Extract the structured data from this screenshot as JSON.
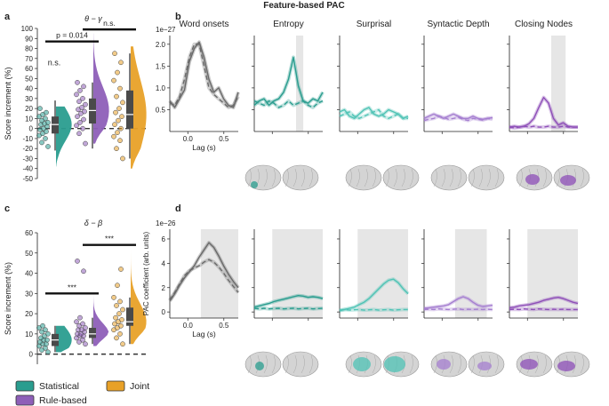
{
  "figure": {
    "title": "Feature-based PAC",
    "panel_labels": [
      "a",
      "b",
      "c",
      "d"
    ],
    "legend": [
      {
        "label": "Statistical",
        "color": "#2a9d8f"
      },
      {
        "label": "Rule-based",
        "color": "#8e5fb8"
      },
      {
        "label": "Joint",
        "color": "#e8a128"
      }
    ]
  },
  "chart_data": [
    {
      "id": "a",
      "type": "violin",
      "title": "θ − γ",
      "ylabel": "Score increment (%)",
      "ylim": [
        -50,
        100
      ],
      "yticks": [
        -50,
        -40,
        -30,
        -20,
        -10,
        0,
        10,
        20,
        30,
        40,
        50,
        60,
        70,
        80,
        90,
        100
      ],
      "groups": [
        {
          "name": "Statistical",
          "median": 4,
          "q1": -5,
          "q3": 12,
          "whisker_low": -22,
          "whisker_high": 28,
          "max": 22,
          "min": -38,
          "points": [
            -18,
            -14,
            -10,
            -7,
            -5,
            -3,
            -1,
            0,
            2,
            4,
            5,
            6,
            8,
            10,
            12,
            14,
            16,
            20
          ]
        },
        {
          "name": "Rule-based",
          "median": 18,
          "q1": 5,
          "q3": 30,
          "whisker_low": -20,
          "whisker_high": 46,
          "max": 95,
          "min": -15,
          "points": [
            -15,
            -5,
            0,
            3,
            6,
            9,
            12,
            15,
            17,
            19,
            21,
            24,
            27,
            30,
            34,
            38,
            42,
            46
          ]
        },
        {
          "name": "Joint",
          "median": 14,
          "q1": 0,
          "q3": 38,
          "whisker_low": -30,
          "whisker_high": 75,
          "max": 82,
          "min": -40,
          "points": [
            -30,
            -20,
            -12,
            -8,
            -4,
            0,
            4,
            8,
            12,
            16,
            20,
            26,
            32,
            40,
            48,
            56,
            66,
            75
          ]
        }
      ],
      "annotations": [
        {
          "pair": [
            0,
            1
          ],
          "text": "p = 0.014",
          "y": 87
        },
        {
          "pair": [
            1,
            2
          ],
          "text": "n.s.",
          "y": 99
        },
        {
          "group": 0,
          "text": "n.s.",
          "y": 63
        }
      ]
    },
    {
      "id": "c",
      "type": "violin",
      "title": "δ − β",
      "ylabel": "Score increment (%)",
      "ylim": [
        -5,
        60
      ],
      "yticks": [
        0,
        10,
        20,
        30,
        40,
        50,
        60
      ],
      "groups": [
        {
          "name": "Statistical",
          "median": 7,
          "q1": 4,
          "q3": 10,
          "whisker_low": 1,
          "whisker_high": 14,
          "max": 14,
          "min": 1,
          "points": [
            1,
            2,
            3,
            4,
            5,
            5,
            6,
            7,
            7,
            8,
            9,
            10,
            11,
            12,
            13,
            14
          ]
        },
        {
          "name": "Rule-based",
          "median": 10,
          "q1": 8,
          "q3": 13,
          "whisker_low": 5,
          "whisker_high": 18,
          "max": 47,
          "min": 4,
          "points": [
            5,
            6,
            7,
            8,
            9,
            9,
            10,
            10,
            11,
            12,
            12,
            13,
            14,
            15,
            16,
            18,
            41,
            46
          ]
        },
        {
          "name": "Joint",
          "median": 16,
          "q1": 14,
          "q3": 23,
          "whisker_low": 5,
          "whisker_high": 28,
          "max": 52,
          "min": 5,
          "points": [
            5,
            8,
            10,
            12,
            13,
            14,
            15,
            16,
            17,
            18,
            20,
            22,
            24,
            26,
            28,
            34,
            42
          ]
        }
      ],
      "annotations": [
        {
          "pair": [
            0,
            1
          ],
          "text": "***",
          "y": 30
        },
        {
          "pair": [
            1,
            2
          ],
          "text": "***",
          "y": 54
        }
      ]
    },
    {
      "id": "b",
      "type": "line",
      "row_label": "b",
      "scale_label": "1e−27",
      "ylim": [
        0,
        2.2
      ],
      "yticks": [
        0.5,
        1.0,
        1.5,
        2.0
      ],
      "xlim": [
        -0.25,
        0.7
      ],
      "xticks": [
        0,
        0.5
      ],
      "xlabel": "Lag (s)",
      "panels": [
        {
          "title": "Word onsets",
          "color": "#6a6a6a",
          "shade": null,
          "solid": [
            0.7,
            0.55,
            0.75,
            0.95,
            1.6,
            1.9,
            2.05,
            1.7,
            1.2,
            0.9,
            1.0,
            0.75,
            0.6,
            0.55,
            0.9
          ],
          "dashed": [
            0.65,
            0.6,
            0.8,
            1.2,
            1.7,
            2.0,
            2.0,
            1.5,
            1.0,
            0.85,
            0.75,
            0.65,
            0.55,
            0.6,
            0.8
          ]
        },
        {
          "title": "Entropy",
          "color": "#2a9d8f",
          "shade": [
            0.33,
            0.43
          ],
          "solid": [
            0.6,
            0.7,
            0.75,
            0.6,
            0.7,
            0.75,
            0.9,
            1.2,
            1.7,
            1.05,
            0.7,
            0.65,
            0.75,
            0.7,
            0.9
          ],
          "dashed": [
            0.7,
            0.65,
            0.6,
            0.7,
            0.65,
            0.55,
            0.6,
            0.7,
            0.6,
            0.65,
            0.7,
            0.6,
            0.55,
            0.65,
            0.7
          ]
        },
        {
          "title": "Surprisal",
          "color": "#4fc3b5",
          "shade": null,
          "solid": [
            0.45,
            0.5,
            0.35,
            0.3,
            0.4,
            0.5,
            0.55,
            0.4,
            0.35,
            0.4,
            0.5,
            0.45,
            0.4,
            0.3,
            0.35
          ],
          "dashed": [
            0.35,
            0.4,
            0.45,
            0.35,
            0.3,
            0.35,
            0.4,
            0.45,
            0.5,
            0.35,
            0.3,
            0.35,
            0.4,
            0.3,
            0.3
          ]
        },
        {
          "title": "Syntactic Depth",
          "color": "#a57fd0",
          "shade": null,
          "solid": [
            0.3,
            0.35,
            0.4,
            0.35,
            0.3,
            0.35,
            0.4,
            0.35,
            0.3,
            0.3,
            0.35,
            0.3,
            0.28,
            0.3,
            0.32
          ],
          "dashed": [
            0.25,
            0.28,
            0.3,
            0.35,
            0.32,
            0.28,
            0.3,
            0.32,
            0.28,
            0.25,
            0.3,
            0.28,
            0.26,
            0.3,
            0.28
          ]
        },
        {
          "title": "Closing Nodes",
          "color": "#8e4fb8",
          "shade": [
            0.33,
            0.53
          ],
          "solid": [
            0.1,
            0.12,
            0.1,
            0.12,
            0.18,
            0.3,
            0.55,
            0.78,
            0.65,
            0.3,
            0.15,
            0.2,
            0.12,
            0.1,
            0.1
          ],
          "dashed": [
            0.1,
            0.08,
            0.1,
            0.12,
            0.1,
            0.12,
            0.1,
            0.1,
            0.12,
            0.1,
            0.1,
            0.12,
            0.1,
            0.1,
            0.1
          ]
        }
      ]
    },
    {
      "id": "d",
      "type": "line",
      "row_label": "d",
      "scale_label": "1e−26",
      "ylabel": "PAC coefficient (arb. units)",
      "ylim": [
        -0.5,
        6.8
      ],
      "yticks": [
        0,
        2,
        4,
        6
      ],
      "xlim": [
        -0.25,
        0.7
      ],
      "xticks": [
        0,
        0.5
      ],
      "xlabel": "Lag (s)",
      "panels": [
        {
          "title": "Word onsets",
          "color": "#6a6a6a",
          "shade": [
            0.18,
            0.7
          ],
          "solid": [
            0.9,
            1.5,
            2.2,
            2.8,
            3.3,
            3.8,
            4.5,
            5.1,
            5.7,
            5.3,
            4.6,
            3.8,
            3.1,
            2.5,
            2.0
          ],
          "dashed": [
            1.0,
            1.6,
            2.3,
            3.0,
            3.4,
            3.6,
            3.8,
            4.1,
            4.3,
            4.1,
            3.7,
            3.2,
            2.6,
            2.1,
            1.6
          ]
        },
        {
          "title": "Entropy",
          "color": "#2a9d8f",
          "shade": [
            0.0,
            0.7
          ],
          "solid": [
            0.4,
            0.5,
            0.6,
            0.7,
            0.85,
            0.95,
            1.05,
            1.15,
            1.25,
            1.35,
            1.3,
            1.2,
            1.25,
            1.2,
            1.1
          ],
          "dashed": [
            0.3,
            0.25,
            0.3,
            0.25,
            0.28,
            0.3,
            0.25,
            0.28,
            0.3,
            0.25,
            0.28,
            0.3,
            0.25,
            0.28,
            0.3
          ]
        },
        {
          "title": "Surprisal",
          "color": "#4fc3b5",
          "shade": [
            0.0,
            0.7
          ],
          "solid": [
            0.1,
            0.2,
            0.3,
            0.4,
            0.6,
            0.8,
            1.1,
            1.5,
            1.9,
            2.3,
            2.6,
            2.7,
            2.4,
            1.9,
            1.5
          ],
          "dashed": [
            0.15,
            0.2,
            0.15,
            0.18,
            0.2,
            0.15,
            0.18,
            0.2,
            0.15,
            0.18,
            0.2,
            0.15,
            0.18,
            0.2,
            0.2
          ]
        },
        {
          "title": "Syntactic Depth",
          "color": "#a57fd0",
          "shade": [
            0.18,
            0.62
          ],
          "solid": [
            0.3,
            0.35,
            0.4,
            0.45,
            0.5,
            0.6,
            0.85,
            1.1,
            1.25,
            1.1,
            0.8,
            0.55,
            0.45,
            0.5,
            0.55
          ],
          "dashed": [
            0.2,
            0.22,
            0.2,
            0.25,
            0.22,
            0.2,
            0.22,
            0.25,
            0.2,
            0.22,
            0.2,
            0.22,
            0.2,
            0.22,
            0.2
          ]
        },
        {
          "title": "Closing Nodes",
          "color": "#8e4fb8",
          "shade": [
            0.0,
            0.7
          ],
          "solid": [
            0.35,
            0.4,
            0.5,
            0.55,
            0.6,
            0.7,
            0.8,
            0.95,
            1.05,
            1.15,
            1.2,
            1.1,
            0.95,
            0.8,
            0.7
          ],
          "dashed": [
            0.2,
            0.22,
            0.2,
            0.25,
            0.22,
            0.2,
            0.25,
            0.22,
            0.2,
            0.22,
            0.2,
            0.22,
            0.2,
            0.2,
            0.2
          ]
        }
      ]
    }
  ]
}
